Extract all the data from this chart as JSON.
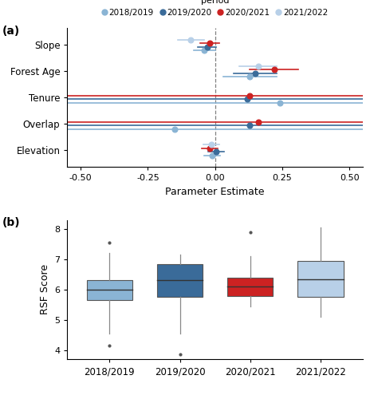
{
  "legend_title": "period",
  "periods": [
    "2018/2019",
    "2019/2020",
    "2020/2021",
    "2021/2022"
  ],
  "colors": [
    "#8ab4d4",
    "#3a6b99",
    "#cc2222",
    "#b8d0e8"
  ],
  "panel_a_label": "(a)",
  "panel_b_label": "(b)",
  "variables": [
    "Slope",
    "Forest Age",
    "Tenure",
    "Overlap",
    "Elevation"
  ],
  "forest_plot": {
    "Slope": {
      "estimates": [
        -0.04,
        -0.03,
        -0.02,
        -0.09
      ],
      "ci_low": [
        -0.08,
        -0.065,
        -0.055,
        -0.14
      ],
      "ci_high": [
        0.0,
        0.005,
        0.015,
        -0.04
      ]
    },
    "Forest Age": {
      "estimates": [
        0.13,
        0.15,
        0.22,
        0.16
      ],
      "ci_low": [
        0.03,
        0.07,
        0.13,
        0.09
      ],
      "ci_high": [
        0.23,
        0.23,
        0.31,
        0.23
      ]
    },
    "Tenure": {
      "estimates": [
        0.24,
        0.12,
        0.13,
        null
      ],
      "ci_low": [
        -0.55,
        -0.55,
        -0.55,
        null
      ],
      "ci_high": [
        0.55,
        0.55,
        0.55,
        null
      ]
    },
    "Overlap": {
      "estimates": [
        -0.15,
        0.13,
        0.16,
        null
      ],
      "ci_low": [
        -0.55,
        -0.55,
        -0.55,
        null
      ],
      "ci_high": [
        0.55,
        0.55,
        0.55,
        null
      ]
    },
    "Elevation": {
      "estimates": [
        -0.01,
        0.005,
        -0.02,
        -0.015
      ],
      "ci_low": [
        -0.04,
        -0.025,
        -0.05,
        -0.045
      ],
      "ci_high": [
        0.02,
        0.035,
        0.01,
        0.015
      ]
    }
  },
  "xlim": [
    -0.55,
    0.55
  ],
  "xticks": [
    -0.5,
    -0.25,
    0.0,
    0.25,
    0.5
  ],
  "xlabel": "Parameter Estimate",
  "boxplot": {
    "2018/2019": {
      "q1": 5.65,
      "median": 6.0,
      "q3": 6.3,
      "whislo": 4.55,
      "whishi": 7.2,
      "fliers": [
        4.15,
        7.55
      ]
    },
    "2019/2020": {
      "q1": 5.75,
      "median": 6.3,
      "q3": 6.85,
      "whislo": 4.55,
      "whishi": 7.15,
      "fliers": [
        3.85
      ]
    },
    "2020/2021": {
      "q1": 5.78,
      "median": 6.1,
      "q3": 6.4,
      "whislo": 5.45,
      "whishi": 7.1,
      "fliers": [
        7.9
      ]
    },
    "2021/2022": {
      "q1": 5.75,
      "median": 6.35,
      "q3": 6.95,
      "whislo": 5.1,
      "whishi": 8.05,
      "fliers": []
    }
  },
  "ylabel_b": "RSF Score",
  "ylim_b": [
    3.7,
    8.3
  ],
  "yticks_b": [
    4,
    5,
    6,
    7,
    8
  ]
}
